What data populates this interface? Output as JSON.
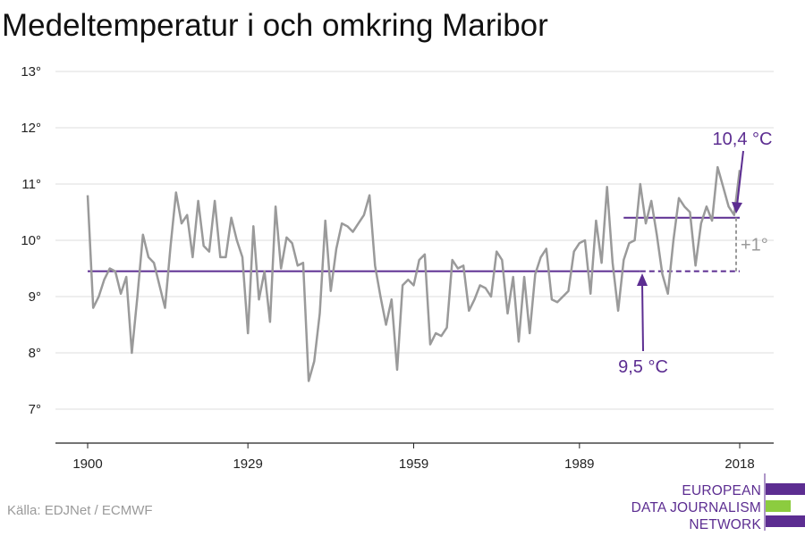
{
  "chart_data": {
    "type": "line",
    "title": "Medeltemperatur i och omkring Maribor",
    "xlabel": "",
    "ylabel": "",
    "xlim": [
      1900,
      2018
    ],
    "ylim": [
      6.4,
      13
    ],
    "y_ticks": [
      7,
      8,
      9,
      10,
      11,
      12,
      13
    ],
    "y_tick_suffix": "°",
    "x_ticks": [
      1900,
      1929,
      1959,
      1989,
      2018
    ],
    "grid": true,
    "series": [
      {
        "color": "#9a9a9a",
        "x": [
          1900,
          1901,
          1902,
          1903,
          1904,
          1905,
          1906,
          1907,
          1908,
          1909,
          1910,
          1911,
          1912,
          1913,
          1914,
          1915,
          1916,
          1917,
          1918,
          1919,
          1920,
          1921,
          1922,
          1923,
          1924,
          1925,
          1926,
          1927,
          1928,
          1929,
          1930,
          1931,
          1932,
          1933,
          1934,
          1935,
          1936,
          1937,
          1938,
          1939,
          1940,
          1941,
          1942,
          1943,
          1944,
          1945,
          1946,
          1947,
          1948,
          1949,
          1950,
          1951,
          1952,
          1953,
          1954,
          1955,
          1956,
          1957,
          1958,
          1959,
          1960,
          1961,
          1962,
          1963,
          1964,
          1965,
          1966,
          1967,
          1968,
          1969,
          1970,
          1971,
          1972,
          1973,
          1974,
          1975,
          1976,
          1977,
          1978,
          1979,
          1980,
          1981,
          1982,
          1983,
          1984,
          1985,
          1986,
          1987,
          1988,
          1989,
          1990,
          1991,
          1992,
          1993,
          1994,
          1995,
          1996,
          1997,
          1998,
          1999,
          2000,
          2001,
          2002,
          2003,
          2004,
          2005,
          2006,
          2007,
          2008,
          2009,
          2010,
          2011,
          2012,
          2013,
          2014,
          2015,
          2016,
          2017,
          2018
        ],
        "values": [
          10.8,
          8.8,
          9.0,
          9.3,
          9.5,
          9.45,
          9.05,
          9.35,
          8.0,
          9.0,
          10.1,
          9.7,
          9.6,
          9.2,
          8.8,
          9.9,
          10.85,
          10.3,
          10.45,
          9.7,
          10.7,
          9.9,
          9.8,
          10.7,
          9.7,
          9.7,
          10.4,
          10.0,
          9.7,
          8.35,
          10.25,
          8.95,
          9.45,
          8.55,
          10.6,
          9.5,
          10.05,
          9.95,
          9.55,
          9.6,
          7.5,
          7.85,
          8.7,
          10.35,
          9.1,
          9.85,
          10.3,
          10.25,
          10.15,
          10.3,
          10.45,
          10.8,
          9.55,
          9.0,
          8.5,
          8.95,
          7.7,
          9.2,
          9.3,
          9.2,
          9.65,
          9.75,
          8.15,
          8.35,
          8.3,
          8.45,
          9.65,
          9.5,
          9.55,
          8.75,
          8.95,
          9.2,
          9.15,
          9.0,
          9.8,
          9.65,
          8.7,
          9.35,
          8.2,
          9.35,
          8.35,
          9.4,
          9.7,
          9.85,
          8.95,
          8.9,
          9.0,
          9.1,
          9.8,
          9.95,
          10.0,
          9.05,
          10.35,
          9.6,
          10.95,
          9.6,
          8.75,
          9.65,
          9.95,
          10.0,
          11.0,
          10.3,
          10.7,
          10.1,
          9.4,
          9.05,
          10.0,
          10.75,
          10.6,
          10.5,
          9.55,
          10.3,
          10.6,
          10.35,
          11.3,
          10.95,
          10.6,
          10.45,
          11.25
        ]
      }
    ],
    "reference_lines": [
      {
        "label": "9,5 °C",
        "y": 9.45,
        "x_start": 1900,
        "x_solid_end": 2000,
        "x_end": 2018,
        "color": "#5c2d91"
      },
      {
        "label": "10,4 °C",
        "y": 10.4,
        "x_start": 1997,
        "x_end": 2018,
        "color": "#5c2d91"
      }
    ],
    "difference_marker": {
      "label": "+1°",
      "x": 2018,
      "y_from": 9.45,
      "y_to": 10.4,
      "color": "#9a9a9a"
    }
  },
  "source": "Källa: EDJNet / ECMWF",
  "logo": {
    "lines": [
      "EUROPEAN",
      "DATA JOURNALISM",
      "NETWORK"
    ],
    "colors": {
      "purple": "#5c2d91",
      "green": "#8ccc3f"
    }
  }
}
